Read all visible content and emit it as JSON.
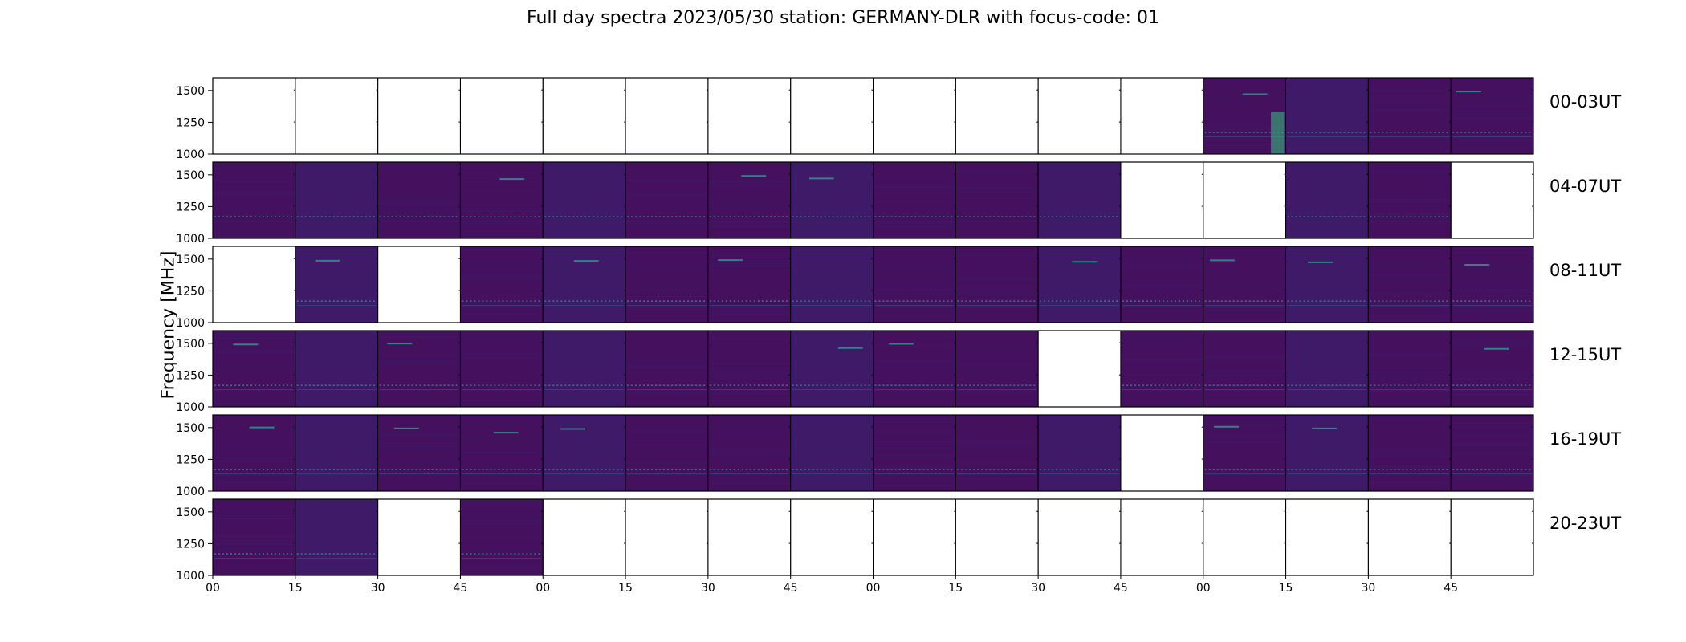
{
  "title": "Full day spectra 2023/05/30 station: GERMANY-DLR with focus-code: 01",
  "ylabel": "Frequency [MHz]",
  "colors": {
    "background": "#ffffff",
    "axes": "#000000",
    "spectrum_base": "#45105e",
    "spectrum_alt": "#3e1a68",
    "band_bright": "#2a9a8a",
    "band_mid": "#3b528b",
    "burst_teal": "#35b779"
  },
  "chart_data": {
    "type": "heatmap",
    "title": "Full day spectra 2023/05/30 station: GERMANY-DLR with focus-code: 01",
    "xlabel": "",
    "ylabel": "Frequency [MHz]",
    "ylim": [
      1000,
      1600
    ],
    "yticks": [
      1000,
      1250,
      1500
    ],
    "xticklabels": [
      "00",
      "15",
      "30",
      "45",
      "00",
      "15",
      "30",
      "45",
      "00",
      "15",
      "30",
      "45",
      "00",
      "15",
      "30",
      "45"
    ],
    "colormap": "viridis",
    "rows": [
      {
        "label": "00-03UT",
        "panels": [
          0,
          0,
          0,
          0,
          0,
          0,
          0,
          0,
          0,
          0,
          0,
          0,
          1,
          1,
          1,
          1
        ]
      },
      {
        "label": "04-07UT",
        "panels": [
          1,
          1,
          1,
          1,
          1,
          1,
          1,
          1,
          1,
          1,
          1,
          0,
          0,
          1,
          1,
          0
        ]
      },
      {
        "label": "08-11UT",
        "panels": [
          0,
          1,
          0,
          1,
          1,
          1,
          1,
          1,
          1,
          1,
          1,
          1,
          1,
          1,
          1,
          1
        ]
      },
      {
        "label": "12-15UT",
        "panels": [
          1,
          1,
          1,
          1,
          1,
          1,
          1,
          1,
          1,
          1,
          0,
          1,
          1,
          1,
          1,
          1
        ]
      },
      {
        "label": "16-19UT",
        "panels": [
          1,
          1,
          1,
          1,
          1,
          1,
          1,
          1,
          1,
          1,
          1,
          0,
          1,
          1,
          1,
          1
        ]
      },
      {
        "label": "20-23UT",
        "panels": [
          1,
          1,
          0,
          1,
          0,
          0,
          0,
          0,
          0,
          0,
          0,
          0,
          0,
          0,
          0,
          0
        ]
      }
    ]
  }
}
